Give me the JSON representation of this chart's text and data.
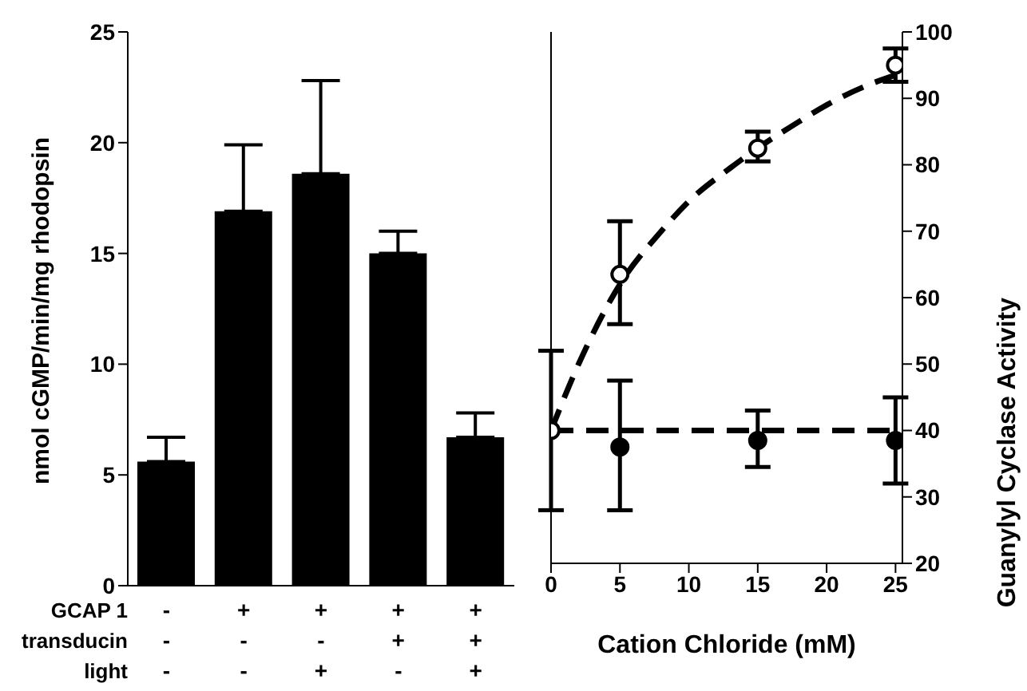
{
  "chart_data": [
    {
      "type": "bar",
      "ylabel": "nmol cGMP/min/mg rhodopsin",
      "categories": [
        "-\n-\n-",
        "+\n-\n-",
        "+\n-\n+",
        "+\n+\n-",
        "+\n+\n+"
      ],
      "values": [
        5.6,
        16.9,
        18.6,
        15.0,
        6.7
      ],
      "errors": [
        [
          5.6,
          6.7
        ],
        [
          16.9,
          19.9
        ],
        [
          18.6,
          22.8
        ],
        [
          15.0,
          16.0
        ],
        [
          6.7,
          7.8
        ]
      ],
      "color": "#000000",
      "ylim": [
        0,
        25
      ],
      "yticks": [
        0,
        5,
        10,
        15,
        20,
        25
      ],
      "annotations": [
        "GCAP 1",
        "transducin",
        "light"
      ]
    },
    {
      "type": "scatter",
      "xlabel": "Cation Chloride (mM)",
      "y2label": "Guanylyl Cyclase Activity",
      "xlim": [
        0,
        25.5
      ],
      "xticks": [
        0,
        5,
        10,
        15,
        20,
        25
      ],
      "y2lim": [
        20,
        100
      ],
      "y2ticks": [
        20,
        30,
        40,
        50,
        60,
        70,
        80,
        90,
        100
      ],
      "series": [
        {
          "type": "scatter",
          "axis": "y2",
          "color": "#000000",
          "x": [
            0,
            5,
            15,
            25
          ],
          "values": [
            40,
            63.5,
            82.5,
            95
          ],
          "errors": [
            [
              28,
              52
            ],
            [
              56,
              71.5
            ],
            [
              80.5,
              85
            ],
            [
              92.5,
              97.5
            ]
          ]
        },
        {
          "type": "scatter",
          "axis": "y2",
          "color": "#000000",
          "x": [
            5,
            15,
            25
          ],
          "values": [
            37.5,
            38.5,
            38.5
          ],
          "errors": [
            [
              28,
              47.5
            ],
            [
              34.5,
              43
            ],
            [
              32,
              45
            ]
          ]
        },
        {
          "type": "line",
          "axis": "y2",
          "color": "#000000",
          "line_style": "dashed",
          "x": [
            0,
            2,
            5,
            8,
            10,
            13,
            15,
            18,
            20,
            23,
            25
          ],
          "values": [
            40,
            50,
            62,
            70,
            74.5,
            79.5,
            82.5,
            86.5,
            89,
            92,
            93.5
          ]
        },
        {
          "type": "line",
          "axis": "y2",
          "color": "#000000",
          "line_style": "dashed",
          "x": [
            0,
            25
          ],
          "values": [
            40,
            40
          ]
        }
      ]
    }
  ]
}
